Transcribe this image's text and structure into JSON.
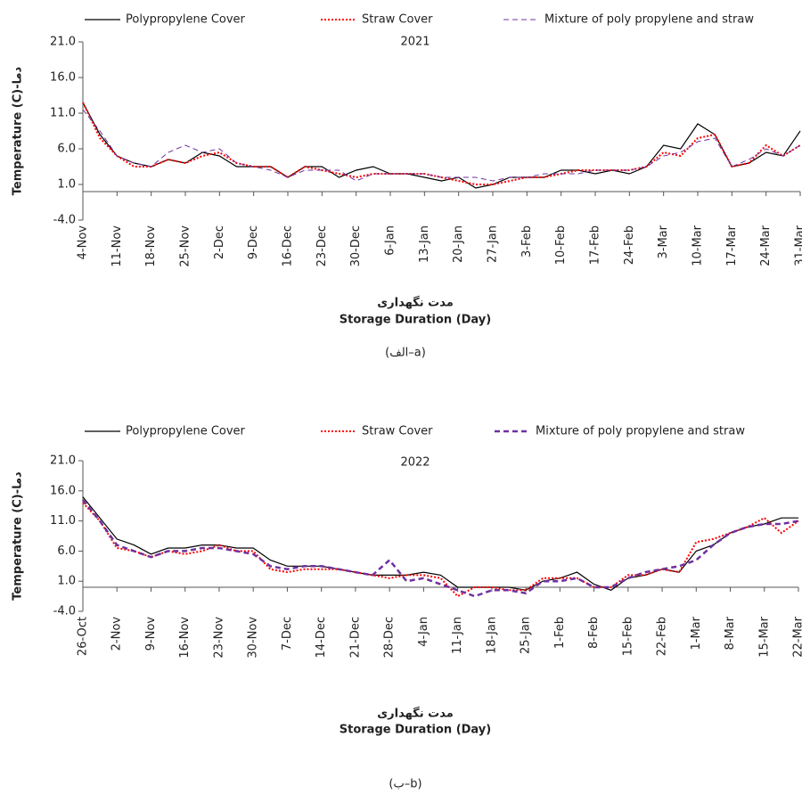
{
  "chart_data": [
    {
      "type": "line",
      "title": "2021",
      "y_label": "Temperature (C)-دما",
      "x_label": "مدت نگهداری",
      "x_label_en": "Storage Duration (Day)",
      "caption": "(الف–a)",
      "categories": [
        "4-Nov",
        null,
        "11-Nov",
        null,
        "18-Nov",
        null,
        "25-Nov",
        null,
        "2-Dec",
        null,
        "9-Dec",
        null,
        "16-Dec",
        null,
        "23-Dec",
        null,
        "30-Dec",
        null,
        "6-Jan",
        null,
        "13-Jan",
        null,
        "20-Jan",
        null,
        "27-Jan",
        null,
        "3-Feb",
        null,
        "10-Feb",
        null,
        "17-Feb",
        null,
        "24-Feb",
        null,
        "3-Mar",
        null,
        "10-Mar",
        null,
        "17-Mar",
        null,
        "24-Mar",
        null,
        "31-Mar"
      ],
      "ylim": [
        -4,
        21
      ],
      "yticks": [
        {
          "value": -4,
          "label": "-4.0"
        },
        {
          "value": 1,
          "label": "1.0"
        },
        {
          "value": 6,
          "label": "6.0"
        },
        {
          "value": 11,
          "label": "11.0"
        },
        {
          "value": 16,
          "label": "16.0"
        },
        {
          "value": 21,
          "label": "21.0"
        }
      ],
      "series": [
        {
          "name": "Polypropylene Cover",
          "color": "#000000",
          "style": "solid",
          "width": 1.2,
          "values": [
            12.5,
            8,
            5,
            4,
            3.5,
            4.5,
            4,
            5.5,
            5,
            3.5,
            3.5,
            3.5,
            2,
            3.5,
            3.5,
            2,
            3,
            3.5,
            2.5,
            2.5,
            2,
            1.5,
            2,
            0.5,
            1,
            2,
            2,
            2,
            3,
            3,
            2.5,
            3,
            2.5,
            3.5,
            6.5,
            6,
            9.5,
            8,
            3.5,
            4,
            5.5,
            5,
            8.5
          ]
        },
        {
          "name": "Straw Cover",
          "color": "#ff0000",
          "style": "dotted",
          "width": 2,
          "values": [
            12.5,
            7.5,
            5,
            3.5,
            3.5,
            4.5,
            4,
            5,
            5.5,
            4,
            3.5,
            3.5,
            2,
            3.5,
            3,
            2.5,
            2,
            2.5,
            2.5,
            2.5,
            2.5,
            2,
            1.5,
            1,
            1,
            1.5,
            2,
            2,
            2.5,
            3,
            3,
            3,
            3,
            3.5,
            5.5,
            5,
            7.5,
            8,
            3.5,
            4,
            6.5,
            5,
            6.5
          ]
        },
        {
          "name": "Mixture of poly propylene and straw",
          "color": "#7030a0",
          "style": "dashed",
          "width": 1,
          "values": [
            11.5,
            8.5,
            5,
            4,
            3.5,
            5.5,
            6.5,
            5.5,
            6,
            4,
            3.5,
            3,
            2,
            3,
            3,
            3,
            1.5,
            2.5,
            2.5,
            2.5,
            2.5,
            2,
            2,
            2,
            1.5,
            2,
            2,
            2.5,
            2.5,
            2.5,
            3,
            3,
            3,
            3.5,
            5,
            5.5,
            7,
            7.5,
            3.5,
            4.5,
            6,
            5,
            6.5
          ]
        }
      ]
    },
    {
      "type": "line",
      "title": "2022",
      "y_label": "Temperature (C)-دما",
      "x_label": "مدت نگهداری",
      "x_label_en": "Storage Duration (Day)",
      "caption": "(ب–b)",
      "categories": [
        "26-Oct",
        null,
        "2-Nov",
        null,
        "9-Nov",
        null,
        "16-Nov",
        null,
        "23-Nov",
        null,
        "30-Nov",
        null,
        "7-Dec",
        null,
        "14-Dec",
        null,
        "21-Dec",
        null,
        "28-Dec",
        null,
        "4-Jan",
        null,
        "11-Jan",
        null,
        "18-Jan",
        null,
        "25-Jan",
        null,
        "1-Feb",
        null,
        "8-Feb",
        null,
        "15-Feb",
        null,
        "22-Feb",
        null,
        "1-Mar",
        null,
        "8-Mar",
        null,
        "15-Mar",
        null,
        "22-Mar"
      ],
      "ylim": [
        -4,
        21
      ],
      "yticks": [
        {
          "value": -4,
          "label": "-4.0"
        },
        {
          "value": 1,
          "label": "1.0"
        },
        {
          "value": 6,
          "label": "6.0"
        },
        {
          "value": 11,
          "label": "11.0"
        },
        {
          "value": 16,
          "label": "16.0"
        },
        {
          "value": 21,
          "label": "21.0"
        }
      ],
      "series": [
        {
          "name": "Polypropylene Cover",
          "color": "#000000",
          "style": "solid",
          "width": 1.2,
          "values": [
            15,
            11.5,
            8,
            7,
            5.5,
            6.5,
            6.5,
            7,
            7,
            6.5,
            6.5,
            4.5,
            3.5,
            3.5,
            3.5,
            3,
            2.5,
            2,
            2,
            2,
            2.5,
            2,
            0,
            0,
            0,
            0,
            -0.5,
            1,
            1.5,
            2.5,
            0.5,
            -0.5,
            1.5,
            2,
            3,
            2.5,
            6,
            7,
            9,
            10,
            10.5,
            11.5,
            11.5
          ]
        },
        {
          "name": "Straw Cover",
          "color": "#ff0000",
          "style": "dotted",
          "width": 2,
          "values": [
            14,
            11,
            6.5,
            6,
            5,
            6,
            5.5,
            6,
            7,
            6,
            6,
            3,
            2.5,
            3,
            3,
            3,
            2.5,
            2,
            1.5,
            2,
            2,
            1.5,
            -1.5,
            0,
            0,
            -0.5,
            -0.5,
            1.5,
            1.5,
            1.5,
            0,
            0,
            2,
            2,
            3,
            2.5,
            7.5,
            8,
            9,
            10,
            11.5,
            9,
            11
          ]
        },
        {
          "name": "Mixture of poly propylene and straw",
          "color": "#7030a0",
          "style": "dashed",
          "width": 2.5,
          "values": [
            14.5,
            11,
            7,
            6,
            5,
            6,
            6,
            6.5,
            6.5,
            6,
            5.5,
            3.5,
            3,
            3.5,
            3.5,
            3,
            2.5,
            2,
            4.5,
            1,
            1.5,
            0.5,
            -0.5,
            -1.5,
            -0.5,
            -0.5,
            -1,
            1,
            1,
            1.5,
            0,
            0,
            1.5,
            2.5,
            3,
            3.5,
            4.5,
            7,
            9,
            10,
            10.5,
            10.5,
            11
          ]
        }
      ]
    }
  ]
}
